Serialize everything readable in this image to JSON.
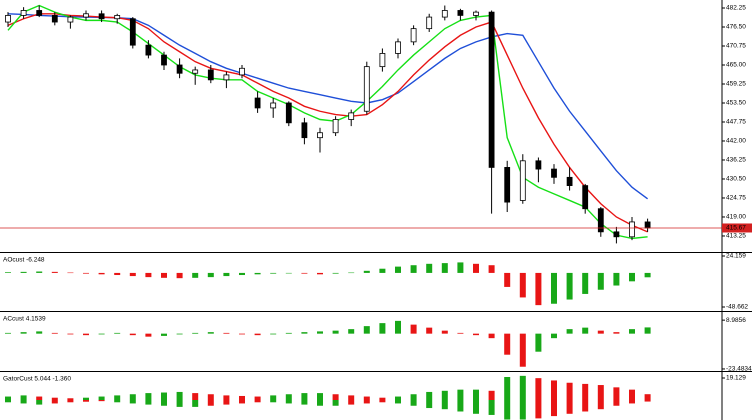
{
  "chart_data": [
    {
      "type": "candlestick",
      "open": [
        478,
        480,
        481.5,
        480,
        478,
        479.5,
        480.5,
        479,
        479,
        471,
        468,
        465,
        462.5,
        463.5,
        460.5,
        462,
        455,
        452,
        453.5,
        447.5,
        443,
        444.5,
        448.5,
        451,
        464.5,
        468.5,
        472,
        476,
        479.5,
        481.5,
        480,
        481,
        434,
        424,
        436,
        433.5,
        431,
        428.5,
        421.5,
        414.5,
        413,
        417.5
      ],
      "high": [
        481,
        482.5,
        483,
        481,
        480,
        481.5,
        481.5,
        480.5,
        479.5,
        472.5,
        469,
        467,
        464.5,
        465,
        463,
        465,
        457,
        455,
        454,
        449,
        446,
        449.5,
        451.5,
        466,
        470,
        473,
        477,
        480.5,
        483,
        482,
        481.5,
        481.5,
        436,
        438,
        437,
        435,
        434,
        429,
        422,
        416,
        419,
        418.5
      ],
      "low": [
        476.5,
        479,
        479.5,
        477,
        476,
        478.5,
        478,
        477.5,
        470,
        467,
        463.5,
        461,
        459,
        459.5,
        458,
        461,
        450.5,
        449,
        446.5,
        441,
        438.5,
        443.5,
        446.5,
        450,
        463,
        467,
        471,
        475,
        478.5,
        478.5,
        478.5,
        420,
        420.5,
        423,
        429.5,
        429,
        427,
        420,
        413,
        411,
        412,
        414.5
      ],
      "close": [
        480,
        481.5,
        480,
        478,
        479.5,
        480.5,
        479,
        480,
        471,
        468,
        465,
        462.5,
        463.5,
        460.5,
        462,
        464,
        452,
        453.5,
        447.5,
        443,
        444.5,
        448.5,
        450.5,
        464.5,
        468.5,
        472,
        476,
        479.5,
        481.5,
        480,
        481,
        434,
        423.5,
        436,
        433.5,
        431,
        428.5,
        421.5,
        414.5,
        413,
        417.5,
        415.67
      ],
      "up_color": "#ffffff",
      "down_color": "#000000",
      "series": [
        {
          "color": "#1f4fd8",
          "values": [
            480.5,
            480.3,
            480,
            479.8,
            479.6,
            479.5,
            479.4,
            479.3,
            479,
            477,
            474,
            471,
            468.5,
            466,
            464,
            462.5,
            461,
            459.5,
            458,
            457,
            456,
            455,
            454,
            453.5,
            454.5,
            456.5,
            460,
            463.5,
            467,
            470,
            472,
            473.5,
            474.5,
            474,
            466,
            458,
            451,
            445,
            439,
            433,
            428,
            424.5
          ]
        },
        {
          "color": "#e81515",
          "values": [
            477,
            479,
            480.5,
            480.5,
            480,
            479.8,
            479.5,
            479.3,
            478.5,
            476,
            472,
            469,
            466,
            464,
            463,
            462,
            459.5,
            457,
            455,
            452.5,
            451,
            450,
            449.5,
            450,
            453,
            457,
            462,
            466.5,
            470.5,
            474,
            476.5,
            478,
            468,
            458,
            449,
            441,
            434,
            428,
            423,
            419,
            416.5,
            414.5
          ]
        },
        {
          "color": "#16e016",
          "values": [
            475.5,
            481,
            483,
            481,
            479.5,
            478.5,
            478.5,
            478,
            475,
            471.5,
            468,
            464.5,
            462,
            461,
            460.5,
            460.5,
            457,
            455,
            453,
            450.5,
            448.5,
            448,
            450,
            454,
            458.5,
            463.5,
            468,
            472,
            476,
            478.5,
            479.5,
            480,
            443,
            431,
            428,
            426,
            424,
            422,
            417,
            413.5,
            412.5,
            413
          ]
        }
      ],
      "last_price": 415.67,
      "last_price_color": "#d32020",
      "ylim": [
        408.4,
        484.67
      ],
      "yticks": [
        482.25,
        {
          "value": 476.5,
          "label": "476.50"
        },
        470.75,
        {
          "value": 465,
          "label": "465.00"
        },
        459.25,
        {
          "value": 453.5,
          "label": "453.50"
        },
        447.75,
        {
          "value": 442,
          "label": "442.00"
        },
        436.25,
        {
          "value": 430.5,
          "label": "430.50"
        },
        424.75,
        {
          "value": 419,
          "label": "419.00"
        },
        413.25
      ]
    },
    {
      "type": "bar",
      "title": "AOcust -6.248",
      "up_color": "#18a818",
      "down_color": "#e81515",
      "series": [
        {
          "values": [
            1,
            1.5,
            2,
            1.5,
            0.5,
            -1,
            -2,
            -3,
            -4.5,
            -6,
            -7,
            -7.5,
            -7,
            -6,
            -4.5,
            -3,
            -2,
            -1,
            0,
            -1,
            -2,
            -1,
            0.5,
            3,
            6,
            9,
            11,
            13,
            14,
            15,
            13,
            11,
            -20,
            -35,
            -46,
            -44,
            -38,
            -30,
            -24,
            -18,
            -12,
            -6.248
          ]
        }
      ],
      "ylim": [
        -54.37,
        28.44
      ],
      "yticks": [
        24.159,
        -48.662
      ]
    },
    {
      "type": "bar",
      "title": "ACcust 4.1539",
      "up_color": "#18a818",
      "down_color": "#e81515",
      "series": [
        {
          "values": [
            0.5,
            1,
            1.5,
            0.5,
            -0.5,
            -1,
            -0.5,
            0.5,
            -1,
            -2,
            -1.5,
            -0.5,
            0.5,
            1,
            0.5,
            -0.5,
            -1,
            -0.5,
            0.5,
            1,
            1.5,
            2,
            3,
            5,
            7,
            8.5,
            6,
            4,
            2,
            0.5,
            -1,
            -3,
            -14,
            -22,
            -12,
            -3,
            3,
            4,
            2,
            1,
            3,
            4.1539
          ]
        }
      ],
      "ylim": [
        -24.84,
        14.4
      ],
      "yticks": [
        8.9856,
        -23.4834
      ]
    },
    {
      "type": "bar",
      "title": "GatorCust 5.044 -1.360",
      "up_color": "#18a818",
      "down_color": "#e81515",
      "series": [
        {
          "values": [
            3,
            4,
            3,
            2,
            1.5,
            2,
            3,
            4,
            5,
            6,
            6.5,
            7,
            6,
            5,
            4,
            3.5,
            3,
            4,
            5,
            6,
            6,
            5,
            4,
            3,
            2,
            3,
            5,
            7,
            8,
            9,
            9,
            8,
            20,
            21,
            19,
            17,
            15,
            14,
            13,
            11,
            9,
            5.044
          ]
        },
        {
          "values": [
            -2,
            -3,
            -4,
            -3,
            -2,
            -1.5,
            -1,
            -2,
            -3,
            -4,
            -5,
            -6,
            -6,
            -5,
            -4,
            -3,
            -2,
            -2,
            -3,
            -4,
            -5,
            -5,
            -4,
            -3,
            -2,
            -3,
            -5,
            -7,
            -8,
            -10,
            -12,
            -13,
            -17,
            -17,
            -16,
            -14,
            -12,
            -10,
            -8,
            -5,
            -3,
            -1.36
          ]
        }
      ],
      "ylim": [
        -17.4,
        24.35
      ],
      "yticks": [
        19.129
      ]
    }
  ]
}
